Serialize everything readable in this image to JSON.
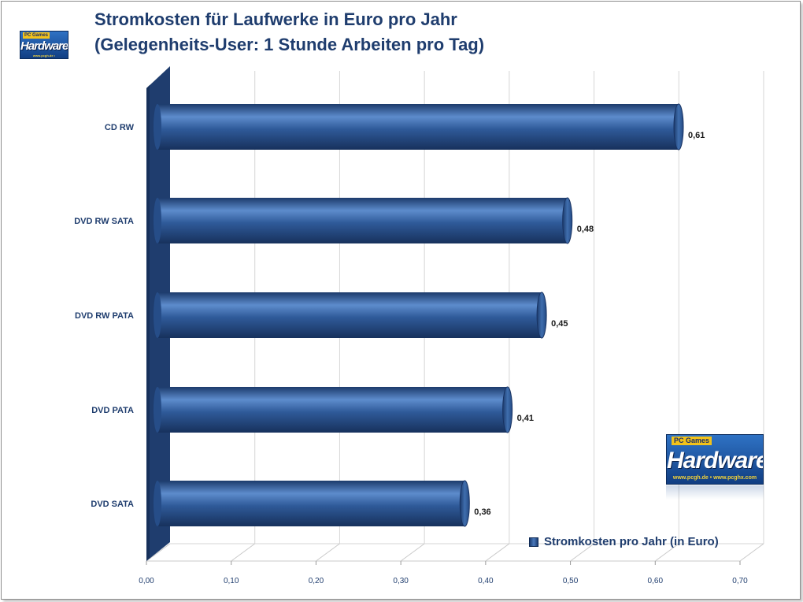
{
  "header": {
    "title": "Stromkosten für Laufwerke in Euro pro Jahr",
    "subtitle": "(Gelegenheits-User: 1 Stunde Arbeiten pro Tag)"
  },
  "logo": {
    "word": "Hardware",
    "badge": "PC Games",
    "url": "www.pcgh.de • www.pcghx.com"
  },
  "legend": {
    "label": "Stromkosten pro Jahr (in Euro)"
  },
  "colors": {
    "bar": "#2f5a99",
    "bar_dark": "#1c3a6b",
    "bar_light": "#5d8ccc",
    "wall": "#1f3d6e",
    "title": "#1f3d6e"
  },
  "chart_data": {
    "type": "bar",
    "orientation": "horizontal",
    "title": "Stromkosten für Laufwerke in Euro pro Jahr",
    "subtitle": "(Gelegenheits-User: 1 Stunde Arbeiten pro Tag)",
    "categories": [
      "CD RW",
      "DVD RW SATA",
      "DVD RW PATA",
      "DVD PATA",
      "DVD SATA"
    ],
    "series": [
      {
        "name": "Stromkosten pro Jahr (in Euro)",
        "values": [
          0.61,
          0.48,
          0.45,
          0.41,
          0.36
        ]
      }
    ],
    "value_labels": [
      "0,61",
      "0,48",
      "0,45",
      "0,41",
      "0,36"
    ],
    "xlim": [
      0,
      0.7
    ],
    "xticks": [
      0,
      0.1,
      0.2,
      0.3,
      0.4,
      0.5,
      0.6,
      0.7
    ],
    "xtick_labels": [
      "0,00",
      "0,10",
      "0,20",
      "0,30",
      "0,40",
      "0,50",
      "0,60",
      "0,70"
    ],
    "grid": true,
    "legend_position": "bottom-right"
  }
}
